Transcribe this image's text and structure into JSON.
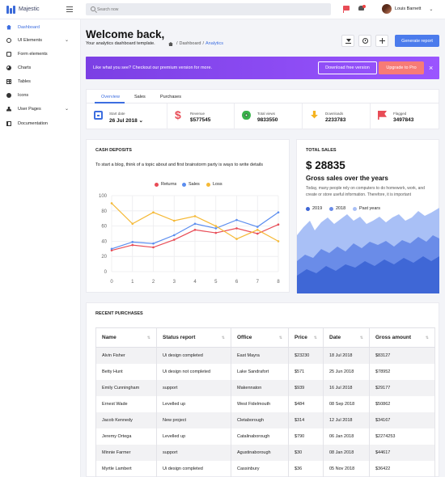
{
  "app": {
    "name": "Majestic"
  },
  "search": {
    "placeholder": "Search now"
  },
  "user": {
    "name": "Louis Barnett"
  },
  "sidebar": {
    "items": [
      {
        "label": "Dashboard",
        "icon": "home-icon",
        "active": true,
        "has_submenu": false
      },
      {
        "label": "UI Elements",
        "icon": "circle-icon",
        "has_submenu": true
      },
      {
        "label": "Form elements",
        "icon": "form-icon",
        "has_submenu": false
      },
      {
        "label": "Charts",
        "icon": "pie-chart-icon",
        "has_submenu": false
      },
      {
        "label": "Tables",
        "icon": "table-icon",
        "has_submenu": false
      },
      {
        "label": "Icons",
        "icon": "smiley-icon",
        "has_submenu": false
      },
      {
        "label": "User Pages",
        "icon": "user-icon",
        "has_submenu": true
      },
      {
        "label": "Documentation",
        "icon": "book-icon",
        "has_submenu": false
      }
    ]
  },
  "header": {
    "title": "Welcome back,",
    "subtitle": "Your analytics dashboard template.",
    "breadcrumb": {
      "sep": "/",
      "items": [
        "Dashboard",
        "Analytics"
      ]
    },
    "primary_button": "Generate report"
  },
  "banner": {
    "text": "Like what you see? Checkout our premium version for more.",
    "button_free": "Download free version",
    "button_pro": "Upgrade to Pro",
    "close": "×"
  },
  "stats": {
    "tabs": [
      "Overview",
      "Sales",
      "Purchases"
    ],
    "items": [
      {
        "label": "Start date",
        "value": "26 Jul 2018",
        "dropdown": "⌄"
      },
      {
        "label": "Revenue",
        "value": "$577545"
      },
      {
        "label": "Total views",
        "value": "9833550"
      },
      {
        "label": "Downloads",
        "value": "2233783"
      },
      {
        "label": "Flagged",
        "value": "3497843"
      }
    ]
  },
  "cash_deposits": {
    "title": "CASH DEPOSITS",
    "description": "To start a blog, think of a topic about and first brainstorm party is ways to write details"
  },
  "chart_data": {
    "type": "line",
    "x": [
      0,
      1,
      2,
      3,
      4,
      5,
      6,
      7,
      8
    ],
    "ylim": [
      0,
      100
    ],
    "yticks": [
      0,
      20,
      40,
      60,
      80,
      100
    ],
    "legend_position": "top",
    "grid": true,
    "series": [
      {
        "name": "Returns",
        "color": "#e84c56",
        "values": [
          28,
          35,
          32,
          42,
          55,
          51,
          57,
          50,
          62
        ]
      },
      {
        "name": "Sales",
        "color": "#5b8def",
        "values": [
          30,
          39,
          37,
          48,
          63,
          57,
          68,
          59,
          78
        ]
      },
      {
        "name": "Loss",
        "color": "#f5b936",
        "values": [
          90,
          63,
          78,
          67,
          73,
          60,
          43,
          55,
          40
        ]
      }
    ]
  },
  "total_sales": {
    "label": "TOTAL SALES",
    "value": "$ 28835",
    "heading": "Gross sales over the years",
    "description": "Today, many people rely on computers to do homework, work, and create or store useful information. Therefore, it is important",
    "legend": [
      {
        "name": "2019",
        "color": "#3f67d6"
      },
      {
        "name": "2018",
        "color": "#6a8ce8"
      },
      {
        "name": "Past years",
        "color": "#a9c0f6"
      }
    ]
  },
  "purchases": {
    "title": "RECENT PURCHASES",
    "columns": [
      "Name",
      "Status report",
      "Office",
      "Price",
      "Date",
      "Gross amount"
    ],
    "sort_glyph": "⇅",
    "rows": [
      [
        "Alvin Fisher",
        "Ui design completed",
        "East Mayra",
        "$23230",
        "18 Jul 2018",
        "$83127"
      ],
      [
        "Betty Hunt",
        "Ui design not completed",
        "Lake Sandrafort",
        "$571",
        "25 Jun 2018",
        "$78952"
      ],
      [
        "Emily Cunningham",
        "support",
        "Makennaton",
        "$939",
        "16 Jul 2018",
        "$29177"
      ],
      [
        "Ernest Wade",
        "Levelled up",
        "West Fidelmouth",
        "$484",
        "08 Sep 2018",
        "$50862"
      ],
      [
        "Jacob Kennedy",
        "New project",
        "Cletaborough",
        "$314",
        "12 Jul 2018",
        "$34167"
      ],
      [
        "Jeremy Ortega",
        "Levelled up",
        "Catalinaborough",
        "$790",
        "06 Jan 2018",
        "$2274253"
      ],
      [
        "Minnie Farmer",
        "support",
        "Agustinaborough",
        "$30",
        "08 Jan 2018",
        "$44617"
      ],
      [
        "Myrtle Lambert",
        "Ui design completed",
        "Cassinbury",
        "$36",
        "05 Nov 2018",
        "$36422"
      ]
    ]
  }
}
